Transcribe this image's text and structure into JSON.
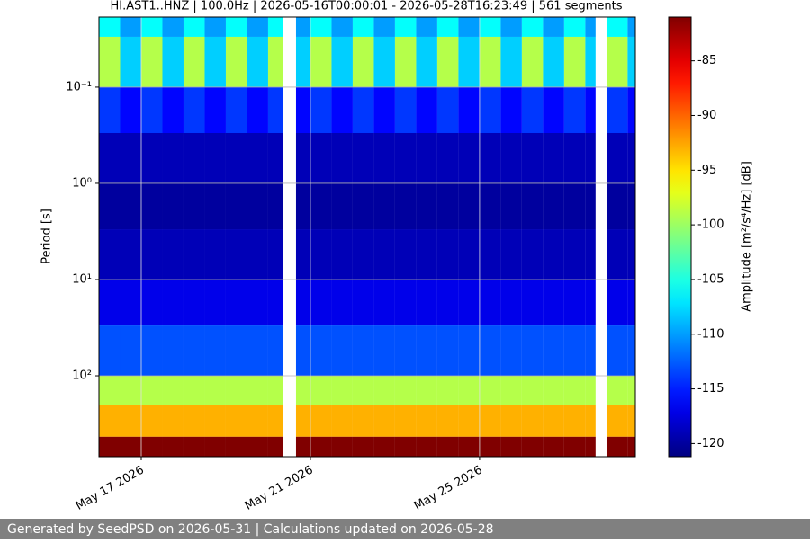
{
  "chart_data": {
    "type": "heatmap",
    "title": "HI.AST1..HNZ | 100.0Hz | 2026-05-16T00:00:01 - 2026-05-28T16:23:49 | 561 segments",
    "y_label": "Period [s]",
    "colorbar_label": "Amplitude [m²/s⁴/Hz] [dB]",
    "footer": "Generated by SeedPSD on 2026-05-31 | Calculations updated on 2026-05-28",
    "x": [
      "2026-05-16T00:00:01",
      "2026-05-16T12:00",
      "2026-05-17T00:00",
      "2026-05-17T12:00",
      "2026-05-18T00:00",
      "2026-05-18T12:00",
      "2026-05-19T00:00",
      "2026-05-19T12:00",
      "2026-05-20T00:00",
      "2026-05-20T08:40",
      "2026-05-20T15:50",
      "2026-05-21T00:00",
      "2026-05-21T12:00",
      "2026-05-22T00:00",
      "2026-05-22T12:00",
      "2026-05-23T00:00",
      "2026-05-23T12:00",
      "2026-05-24T00:00",
      "2026-05-24T12:00",
      "2026-05-25T00:00",
      "2026-05-25T12:00",
      "2026-05-26T00:00",
      "2026-05-26T12:00",
      "2026-05-27T00:00",
      "2026-05-27T12:00",
      "2026-05-27T17:50",
      "2026-05-28T00:30",
      "2026-05-28T12:00",
      "2026-05-28T16:23:49"
    ],
    "y": [
      0.0187,
      0.03,
      0.1,
      0.3,
      1,
      3,
      10,
      30,
      100,
      200,
      430,
      693
    ],
    "values": [
      [
        -106,
        -110,
        -106,
        -110,
        -106,
        -110,
        -106,
        -110,
        -106,
        null,
        -110,
        -106,
        -110,
        -106,
        -110,
        -106,
        -110,
        -106,
        -110,
        -106,
        -110,
        -106,
        -110,
        -106,
        -110,
        null,
        -106,
        -110
      ],
      [
        -99,
        -108,
        -99,
        -108,
        -99,
        -108,
        -99,
        -108,
        -99,
        null,
        -108,
        -99,
        -108,
        -99,
        -108,
        -99,
        -108,
        -99,
        -108,
        -99,
        -108,
        -99,
        -108,
        -99,
        -108,
        null,
        -99,
        -108
      ],
      [
        -114,
        -116,
        -114,
        -116,
        -114,
        -116,
        -114,
        -116,
        -114,
        null,
        -116,
        -114,
        -116,
        -114,
        -116,
        -114,
        -116,
        -114,
        -116,
        -114,
        -116,
        -114,
        -116,
        -114,
        -116,
        null,
        -114,
        -116
      ],
      [
        -119,
        -119,
        -119,
        -119,
        -119,
        -119,
        -119,
        -119,
        -119,
        null,
        -119,
        -119,
        -119,
        -119,
        -119,
        -119,
        -119,
        -119,
        -119,
        -119,
        -119,
        -119,
        -119,
        -119,
        -119,
        null,
        -119,
        -119
      ],
      [
        -120,
        -120,
        -120,
        -120,
        -120,
        -120,
        -120,
        -120,
        -120,
        null,
        -120,
        -120,
        -120,
        -120,
        -120,
        -120,
        -120,
        -120,
        -120,
        -120,
        -120,
        -120,
        -120,
        -120,
        -120,
        null,
        -120,
        -120
      ],
      [
        -119,
        -119,
        -119,
        -119,
        -119,
        -119,
        -119,
        -119,
        -119,
        null,
        -119,
        -119,
        -119,
        -119,
        -119,
        -119,
        -119,
        -119,
        -119,
        -119,
        -119,
        -119,
        -119,
        -119,
        -119,
        null,
        -119,
        -119
      ],
      [
        -117,
        -117,
        -117,
        -117,
        -117,
        -117,
        -117,
        -117,
        -117,
        null,
        -117,
        -117,
        -117,
        -117,
        -117,
        -117,
        -117,
        -117,
        -117,
        -117,
        -117,
        -117,
        -117,
        -117,
        -117,
        null,
        -117,
        -117
      ],
      [
        -113,
        -113,
        -113,
        -113,
        -113,
        -113,
        -113,
        -113,
        -113,
        null,
        -113,
        -113,
        -113,
        -113,
        -113,
        -113,
        -113,
        -113,
        -113,
        -113,
        -113,
        -113,
        -113,
        -113,
        -113,
        null,
        -113,
        -113
      ],
      [
        -99,
        -99,
        -99,
        -99,
        -99,
        -99,
        -99,
        -99,
        -99,
        null,
        -99,
        -99,
        -99,
        -99,
        -99,
        -99,
        -99,
        -99,
        -99,
        -99,
        -99,
        -99,
        -99,
        -99,
        -99,
        null,
        -99,
        -99
      ],
      [
        -93,
        -93,
        -93,
        -93,
        -93,
        -93,
        -93,
        -93,
        -93,
        null,
        -93,
        -93,
        -93,
        -93,
        -93,
        -93,
        -93,
        -93,
        -93,
        -93,
        -93,
        -93,
        -93,
        -93,
        -93,
        null,
        -93,
        -93
      ],
      [
        -81,
        -81,
        -81,
        -81,
        -81,
        -81,
        -81,
        -81,
        -81,
        null,
        -81,
        -81,
        -81,
        -81,
        -81,
        -81,
        -81,
        -81,
        -81,
        -81,
        -81,
        -81,
        -81,
        -81,
        -81,
        null,
        -81,
        -81
      ]
    ],
    "xlim": [
      "2026-05-16T00:00:01",
      "2026-05-28T16:23:49"
    ],
    "xticks": [
      {
        "value": "2026-05-17",
        "label": "May 17 2026"
      },
      {
        "value": "2026-05-21",
        "label": "May 21 2026"
      },
      {
        "value": "2026-05-25",
        "label": "May 25 2026"
      }
    ],
    "ylim": [
      0.0187,
      693
    ],
    "y_log": true,
    "y_inverted": true,
    "yticks": [
      {
        "value": 0.1,
        "label": "10⁻¹"
      },
      {
        "value": 1,
        "label": "10⁰"
      },
      {
        "value": 10,
        "label": "10¹"
      },
      {
        "value": 100,
        "label": "10²"
      }
    ],
    "clim": [
      -121.2,
      -81
    ],
    "cticks": [
      -85,
      -90,
      -95,
      -100,
      -105,
      -110,
      -115,
      -120
    ],
    "colormap": "jet",
    "grid": true
  }
}
